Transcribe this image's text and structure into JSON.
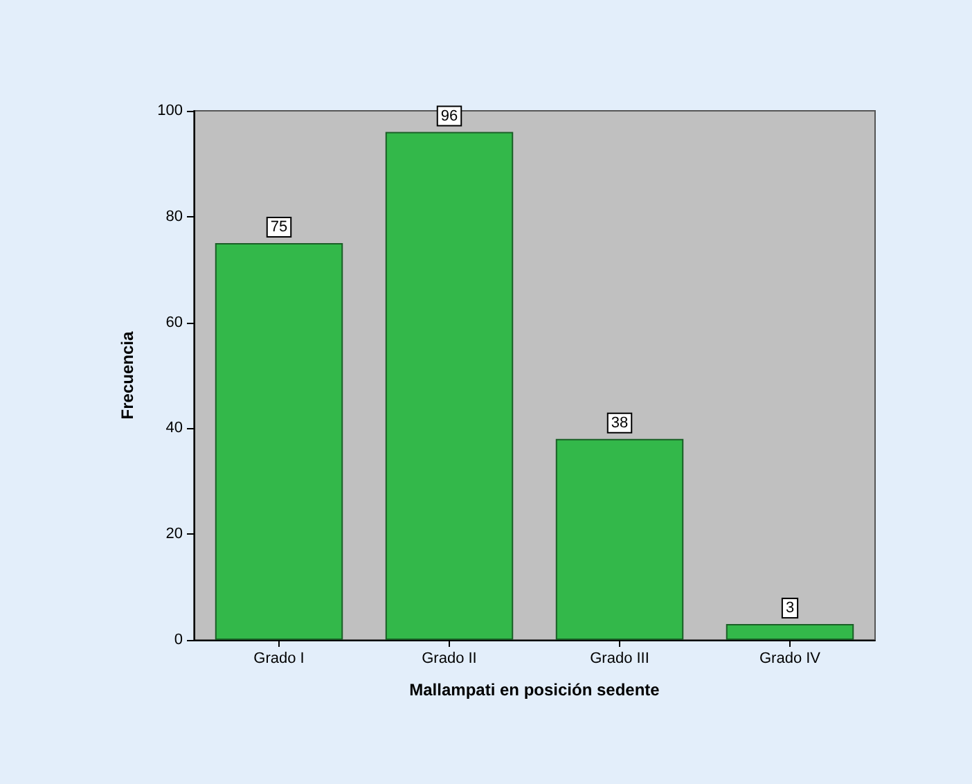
{
  "chart_data": {
    "type": "bar",
    "xlabel": "Mallampati en posición sedente",
    "ylabel": "Frecuencia",
    "categories": [
      "Grado I",
      "Grado II",
      "Grado III",
      "Grado IV"
    ],
    "values": [
      75,
      96,
      38,
      3
    ],
    "color": "#33b84a",
    "ylim": [
      0,
      100
    ],
    "yticks": [
      0,
      20,
      40,
      60,
      80,
      100
    ],
    "grid": false,
    "data_labels": true
  }
}
